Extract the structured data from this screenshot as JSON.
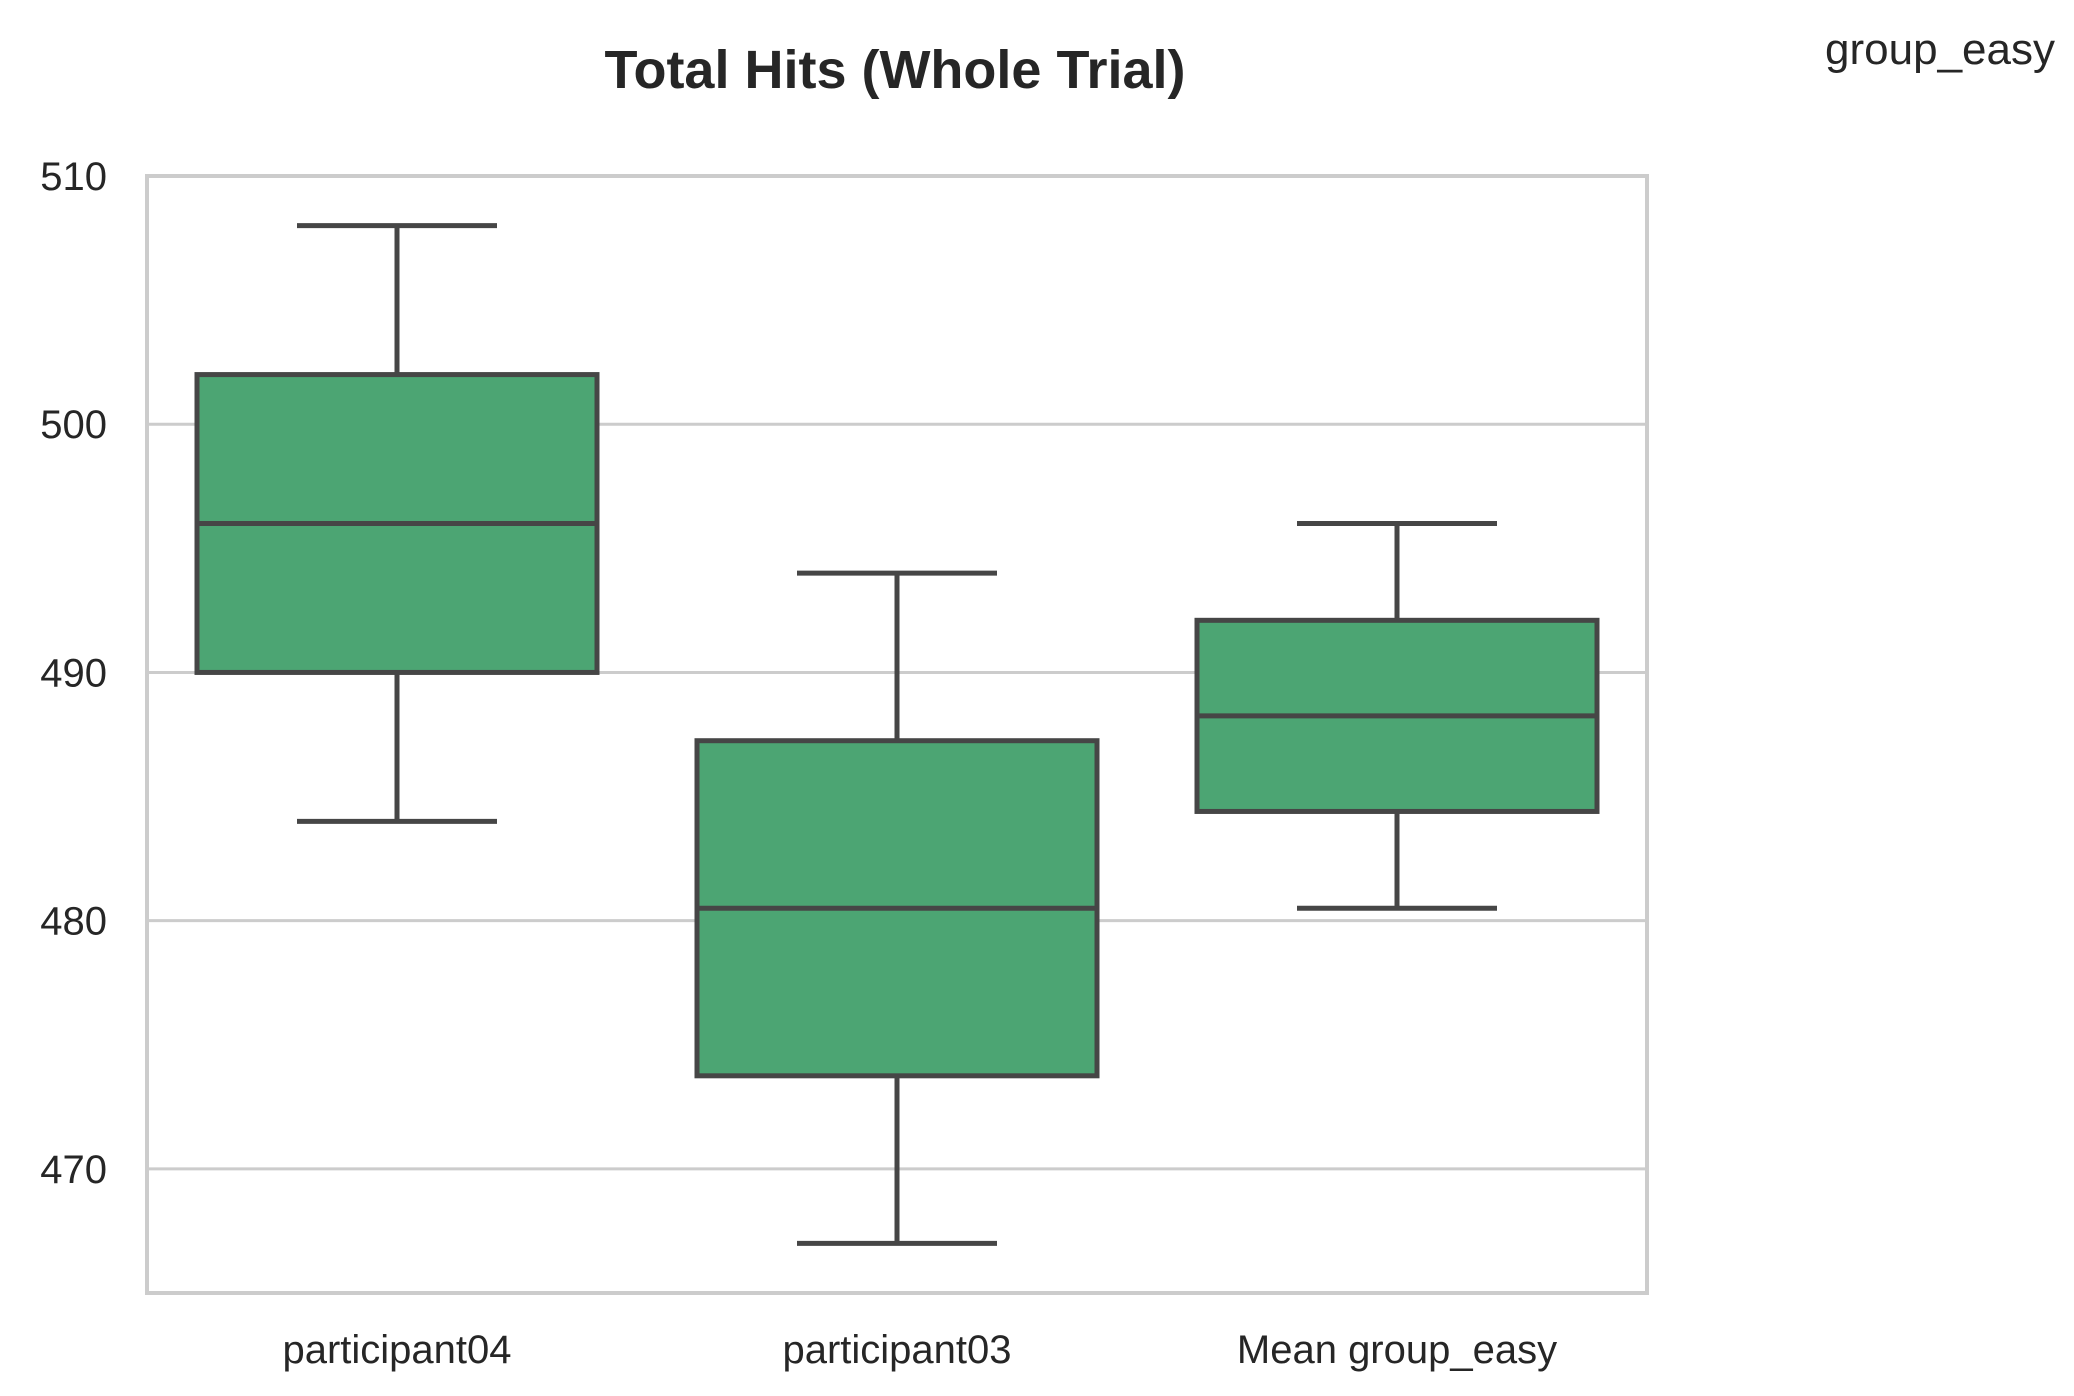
{
  "chart_data": {
    "type": "box",
    "title": "Total Hits (Whole Trial)",
    "corner_label": "group_easy",
    "xlabel": "",
    "ylabel": "",
    "categories": [
      "participant04",
      "participant03",
      "Mean group_easy"
    ],
    "boxes": [
      {
        "category": "participant04",
        "whisker_low": 484,
        "q1": 490,
        "median": 496,
        "q3": 502,
        "whisker_high": 508
      },
      {
        "category": "participant03",
        "whisker_low": 467,
        "q1": 473.75,
        "median": 480.5,
        "q3": 487.25,
        "whisker_high": 494
      },
      {
        "category": "Mean group_easy",
        "whisker_low": 480.5,
        "q1": 484.4,
        "median": 488.25,
        "q3": 492.1,
        "whisker_high": 496
      }
    ],
    "ylim": [
      465,
      510
    ],
    "yticks": [
      470,
      480,
      490,
      500,
      510
    ],
    "grid": true,
    "box_color": "#4ca573",
    "line_color": "#464646",
    "grid_color": "#cccccc"
  }
}
